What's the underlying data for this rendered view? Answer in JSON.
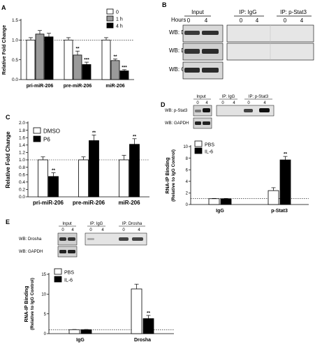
{
  "panels": {
    "A": "A",
    "B": "B",
    "C": "C",
    "D": "D",
    "E": "E"
  },
  "blot_b": {
    "hours_label": "Hours",
    "groups": [
      "Input",
      "IP: IgG",
      "IP: p-Stat3"
    ],
    "lanes": [
      "0",
      "4",
      "0",
      "4",
      "0",
      "4"
    ],
    "rows": [
      "WB: Drosha",
      "WB: DGCR8",
      "WB: GAPDH"
    ]
  },
  "blot_d": {
    "groups": [
      "Input",
      "IP: IgG",
      "IP: p-Stat3"
    ],
    "lanes": [
      "0",
      "4",
      "0",
      "4",
      "0",
      "4"
    ],
    "rows": [
      "WB: p-Stat3",
      "WB: GAPDH"
    ]
  },
  "blot_e": {
    "groups": [
      "Input",
      "IP: IgG",
      "IP: Drosha"
    ],
    "lanes": [
      "0",
      "4",
      "0",
      "4",
      "0",
      "4"
    ],
    "rows": [
      "WB: Drosha",
      "WB: GAPDH"
    ]
  },
  "chart_data": [
    {
      "id": "A",
      "type": "bar",
      "ylabel": "Relative Fold Change",
      "categories": [
        "pri-miR-206",
        "pre-miR-206",
        "miR-206"
      ],
      "ylim": [
        0,
        1.5
      ],
      "yticks": [
        "0.0",
        "0.5",
        "1.0",
        "1.5"
      ],
      "yticks_values": [
        0,
        0.5,
        1.0,
        1.5
      ],
      "reference_line": 1.0,
      "legend_position": "top-right",
      "series": [
        {
          "name": "0",
          "color": "#ffffff",
          "values": [
            1.0,
            1.0,
            1.0
          ],
          "errors": [
            0.06,
            0.06,
            0.06
          ],
          "sig": [
            "",
            "",
            ""
          ]
        },
        {
          "name": "1 h",
          "color": "#9a9a9a",
          "values": [
            1.15,
            0.62,
            0.48
          ],
          "errors": [
            0.09,
            0.1,
            0.04
          ],
          "sig": [
            "",
            "**",
            "**"
          ]
        },
        {
          "name": "4 h",
          "color": "#000000",
          "values": [
            1.08,
            0.38,
            0.22
          ],
          "errors": [
            0.09,
            0.06,
            0.03
          ],
          "sig": [
            "",
            "***",
            "***"
          ]
        }
      ]
    },
    {
      "id": "C",
      "type": "bar",
      "ylabel": "Relative Fold Change",
      "categories": [
        "pri-miR-206",
        "pre-miR-206",
        "miR-206"
      ],
      "ylim": [
        0,
        2.0
      ],
      "yticks": [
        "0.0",
        "0.2",
        "0.4",
        "0.6",
        "0.8",
        "1.0",
        "1.2",
        "1.4",
        "1.6",
        "1.8",
        "2.0"
      ],
      "yticks_values": [
        0,
        0.2,
        0.4,
        0.6,
        0.8,
        1.0,
        1.2,
        1.4,
        1.6,
        1.8,
        2.0
      ],
      "reference_line": 1.0,
      "legend_position": "top-left",
      "series": [
        {
          "name": "DMSO",
          "color": "#ffffff",
          "values": [
            1.0,
            1.0,
            1.0
          ],
          "errors": [
            0.08,
            0.08,
            0.12
          ],
          "sig": [
            "",
            "",
            ""
          ]
        },
        {
          "name": "P6",
          "color": "#000000",
          "values": [
            0.55,
            1.52,
            1.42
          ],
          "errors": [
            0.1,
            0.15,
            0.15
          ],
          "sig": [
            "**",
            "**",
            "**"
          ]
        }
      ]
    },
    {
      "id": "D",
      "type": "bar",
      "ylabel": "RNA-IP Binding",
      "ylabel2": "(Relative to IgG Control)",
      "categories": [
        "IgG",
        "p-Stat3"
      ],
      "ylim": [
        0,
        10
      ],
      "yticks": [
        "0",
        "2",
        "4",
        "6",
        "8",
        "10"
      ],
      "yticks_values": [
        0,
        2,
        4,
        6,
        8,
        10
      ],
      "reference_line": 1.0,
      "legend_position": "top-left",
      "series": [
        {
          "name": "PBS",
          "color": "#ffffff",
          "values": [
            1.0,
            2.4
          ],
          "errors": [
            0.05,
            0.5
          ],
          "sig": [
            "",
            ""
          ]
        },
        {
          "name": "IL-6",
          "color": "#000000",
          "values": [
            1.0,
            7.7
          ],
          "errors": [
            0.05,
            0.6
          ],
          "sig": [
            "",
            "**"
          ]
        }
      ]
    },
    {
      "id": "E",
      "type": "bar",
      "ylabel": "RNA-IP Binding",
      "ylabel2": "(Relative to IgG Control)",
      "categories": [
        "IgG",
        "Drosha"
      ],
      "ylim": [
        0,
        15
      ],
      "yticks": [
        "0",
        "5",
        "10",
        "15"
      ],
      "yticks_values": [
        0,
        5,
        10,
        15
      ],
      "reference_line": 1.0,
      "legend_position": "top-left",
      "series": [
        {
          "name": "PBS",
          "color": "#ffffff",
          "values": [
            1.0,
            11.3
          ],
          "errors": [
            0.05,
            1.2
          ],
          "sig": [
            "",
            ""
          ]
        },
        {
          "name": "IL-6",
          "color": "#000000",
          "values": [
            1.0,
            3.8
          ],
          "errors": [
            0.05,
            0.8
          ],
          "sig": [
            "",
            "**"
          ]
        }
      ]
    }
  ]
}
